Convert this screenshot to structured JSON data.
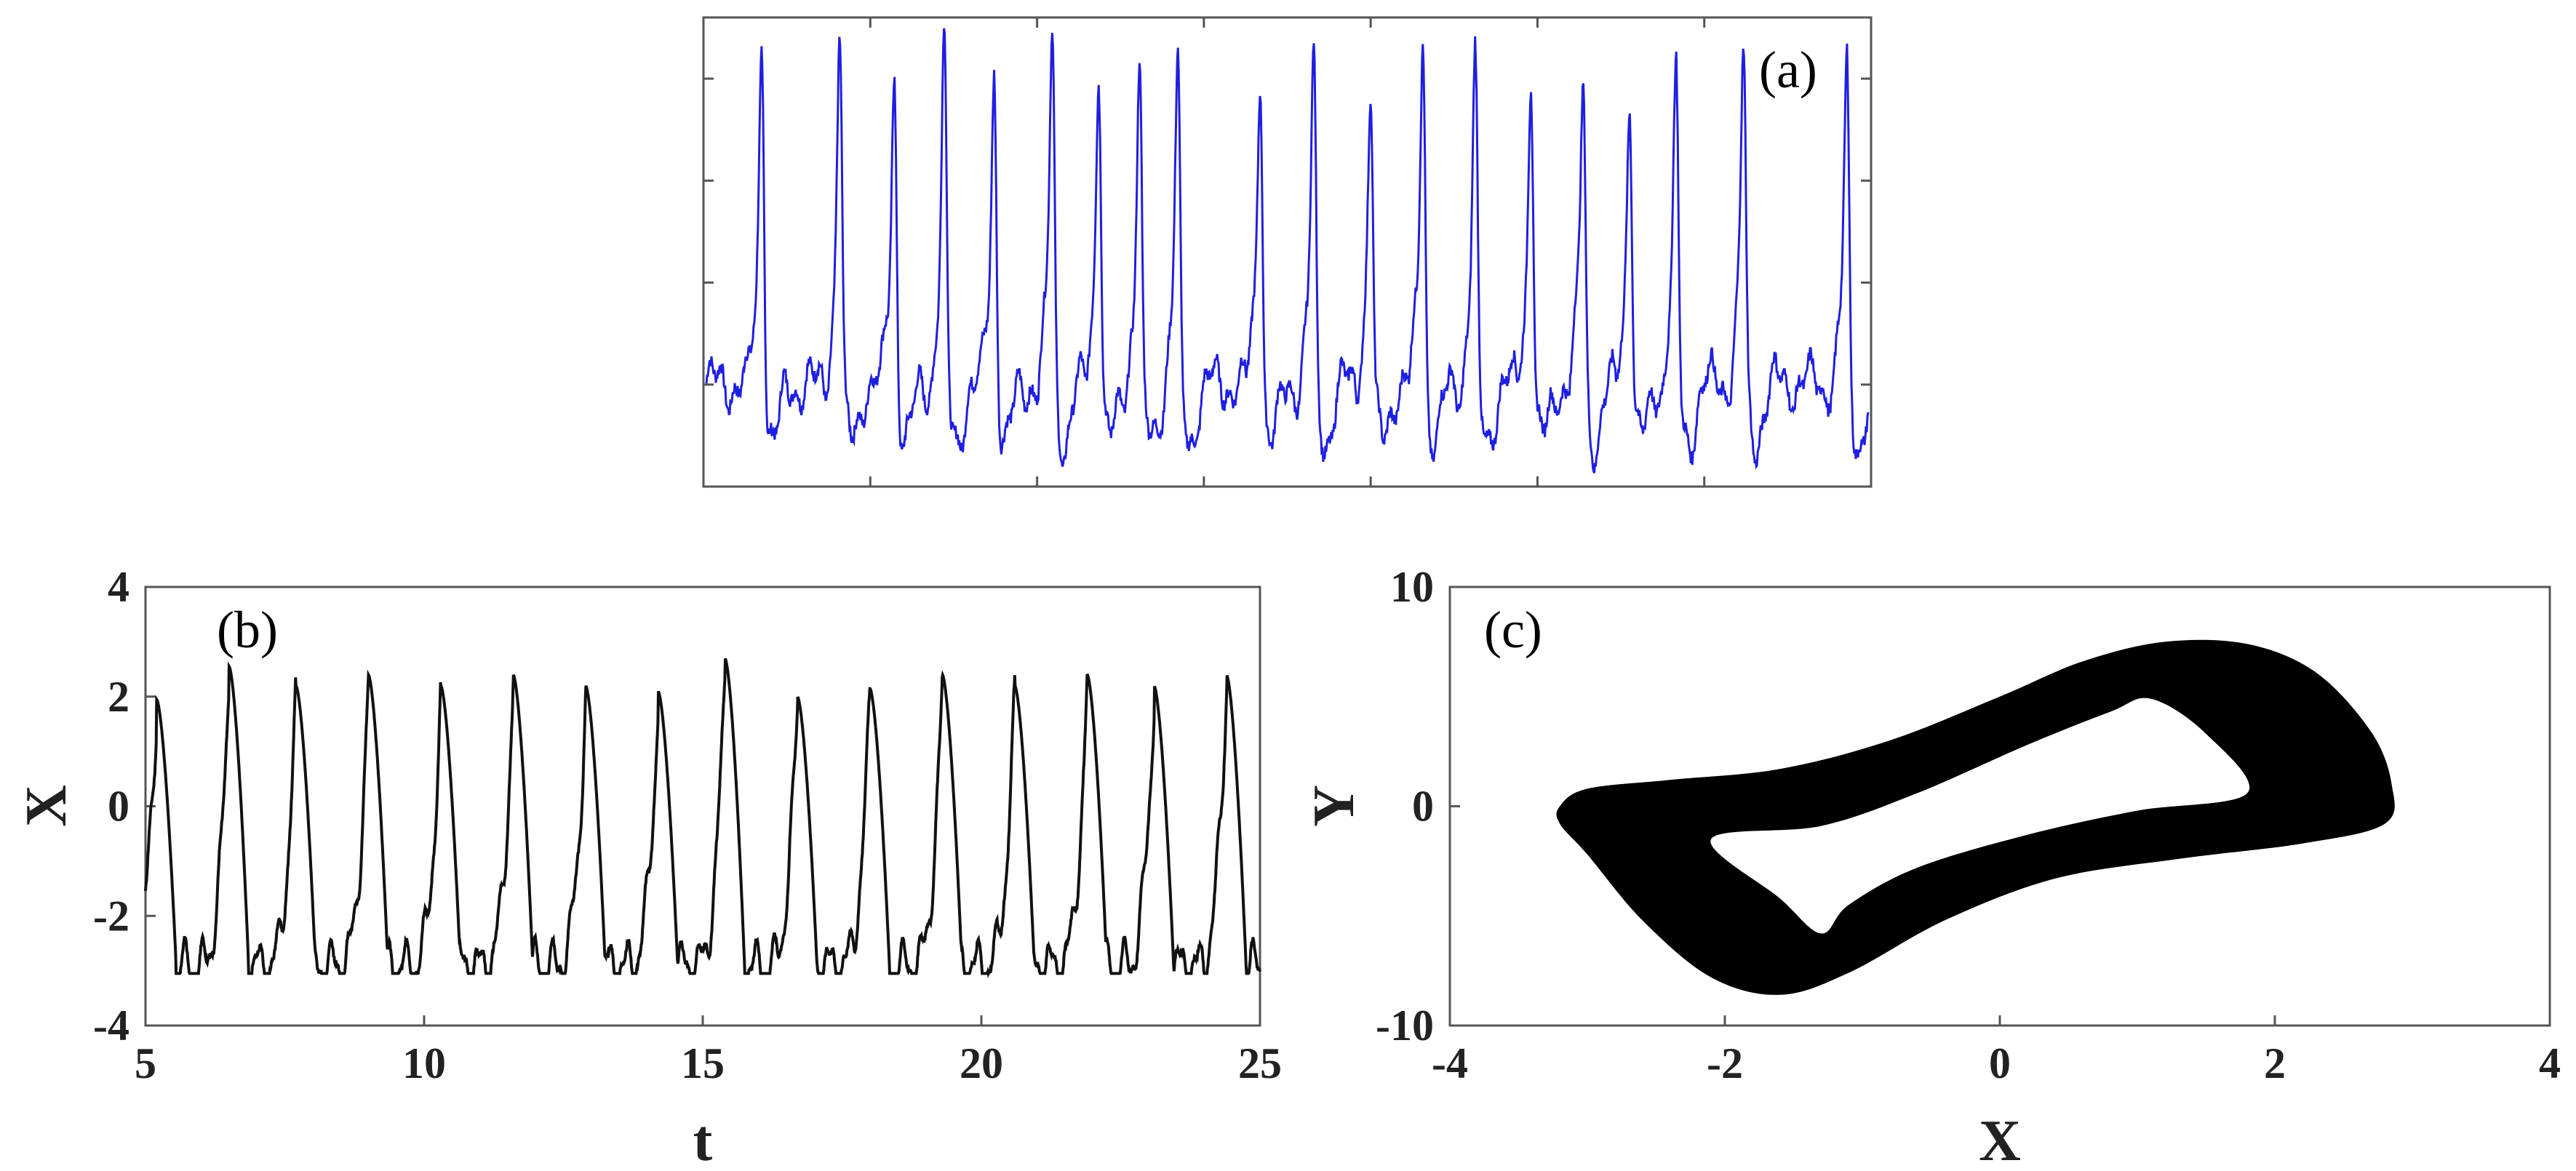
{
  "colors": {
    "panel_a_line": "#1f1fe0",
    "panel_b_line": "#111111",
    "panel_c_fill": "#000000",
    "axes": "#555555"
  },
  "chart_data": [
    {
      "id": "a",
      "type": "line",
      "panel_label": "(a)",
      "title": "",
      "xlabel": "",
      "ylabel": "",
      "ticks_labeled": false,
      "x_tick_count": 7,
      "y_tick_count": 4,
      "note_values": "normalized signal; axes unlabeled",
      "series": [
        {
          "name": "",
          "color": "#1f1fe0",
          "spike_positions": [
            0.048,
            0.115,
            0.162,
            0.205,
            0.248,
            0.298,
            0.338,
            0.373,
            0.406,
            0.477,
            0.523,
            0.572,
            0.617,
            0.662,
            0.71,
            0.755,
            0.795,
            0.835,
            0.893,
            0.982
          ],
          "spike_heights": [
            0.95,
            0.98,
            0.88,
            0.93,
            0.88,
            0.96,
            0.91,
            0.89,
            0.87,
            0.9,
            0.89,
            0.84,
            0.97,
            0.89,
            0.89,
            0.85,
            0.84,
            0.85,
            0.92,
            0.87
          ],
          "baseline": 0.22
        }
      ]
    },
    {
      "id": "b",
      "type": "line",
      "panel_label": "(b)",
      "title": "",
      "xlabel": "t",
      "ylabel": "X",
      "xlim": [
        5,
        25
      ],
      "ylim": [
        -4,
        4
      ],
      "x_ticks": [
        5,
        10,
        15,
        20,
        25
      ],
      "y_ticks": [
        -4,
        -2,
        0,
        2,
        4
      ],
      "series": [
        {
          "name": "",
          "color": "#111111",
          "spike_times": [
            5.2,
            6.5,
            7.7,
            9.0,
            10.3,
            11.6,
            12.9,
            14.2,
            15.4,
            16.7,
            18.0,
            19.3,
            20.6,
            21.9,
            23.1,
            24.4
          ],
          "spike_peaks": [
            1.95,
            2.55,
            2.2,
            2.4,
            2.2,
            2.4,
            2.2,
            2.1,
            2.7,
            2.0,
            2.15,
            2.4,
            2.2,
            2.4,
            2.2,
            2.4
          ],
          "trough": -2.9
        }
      ]
    },
    {
      "id": "c",
      "type": "area",
      "panel_label": "(c)",
      "title": "",
      "xlabel": "X",
      "ylabel": "Y",
      "xlim": [
        -4,
        4
      ],
      "ylim": [
        -10,
        10
      ],
      "x_ticks": [
        -4,
        -2,
        0,
        2,
        4
      ],
      "y_ticks": [
        -10,
        0,
        10
      ],
      "series": [
        {
          "name": "",
          "color": "#000000",
          "outer_boundary": [
            [
              -3.2,
              0.0
            ],
            [
              -3.0,
              0.8
            ],
            [
              -2.4,
              1.2
            ],
            [
              -1.6,
              1.7
            ],
            [
              -0.8,
              3.0
            ],
            [
              0.0,
              5.0
            ],
            [
              0.6,
              6.6
            ],
            [
              1.2,
              7.5
            ],
            [
              1.8,
              7.4
            ],
            [
              2.3,
              6.1
            ],
            [
              2.7,
              3.4
            ],
            [
              2.85,
              1.0
            ],
            [
              2.8,
              -0.8
            ],
            [
              2.2,
              -1.7
            ],
            [
              1.3,
              -2.4
            ],
            [
              0.4,
              -3.3
            ],
            [
              -0.4,
              -5.2
            ],
            [
              -1.1,
              -7.6
            ],
            [
              -1.6,
              -8.6
            ],
            [
              -2.1,
              -7.8
            ],
            [
              -2.6,
              -5.2
            ],
            [
              -3.0,
              -2.2
            ],
            [
              -3.2,
              -0.8
            ]
          ],
          "inner_boundary": [
            [
              -2.1,
              -1.5
            ],
            [
              -1.3,
              -0.9
            ],
            [
              -0.6,
              0.6
            ],
            [
              0.2,
              2.8
            ],
            [
              0.8,
              4.3
            ],
            [
              1.1,
              4.9
            ],
            [
              1.5,
              3.3
            ],
            [
              1.8,
              0.6
            ],
            [
              1.0,
              -0.2
            ],
            [
              0.2,
              -1.3
            ],
            [
              -0.6,
              -2.8
            ],
            [
              -1.1,
              -4.5
            ],
            [
              -1.3,
              -5.8
            ],
            [
              -1.6,
              -4.2
            ]
          ]
        }
      ]
    }
  ]
}
